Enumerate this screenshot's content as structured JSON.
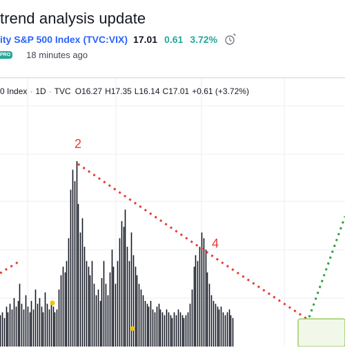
{
  "idea": {
    "title": "trend analysis update",
    "symbol_name": "ity S&P 500 Index",
    "symbol_ticker": "(TVC:VIX)",
    "price": "17.01",
    "change": "0.61",
    "change_pct": "3.72%",
    "badge": "PRO",
    "time_ago": "18 minutes ago"
  },
  "legend": {
    "name": "0 Index",
    "interval": "1D",
    "source": "TVC",
    "o_key": "O",
    "o": "16.27",
    "h_key": "H",
    "h": "17.35",
    "l_key": "L",
    "l": "16.14",
    "c_key": "C",
    "c": "17.01",
    "chg": "+0.61 (+3.72%)"
  },
  "annotations": {
    "wave2": "2",
    "wave4": "4"
  },
  "colors": {
    "accent": "#2962ff",
    "up": "#26a69a",
    "wave_line": "#e53935",
    "trend_line": "#2e9d3e",
    "marker": "#f2c300"
  },
  "chart_data": {
    "type": "line",
    "series": [
      {
        "values": [
          11,
          12,
          10,
          14,
          12,
          15,
          13,
          17,
          14,
          16,
          22,
          15,
          13,
          18,
          14,
          12,
          16,
          13,
          20,
          15,
          17,
          14,
          12,
          19,
          15,
          13,
          16,
          14,
          12,
          13,
          20,
          25,
          28,
          26,
          30,
          38,
          55,
          62,
          58,
          65,
          50,
          40,
          45,
          35,
          30,
          28,
          25,
          30,
          22,
          18,
          20,
          16,
          24,
          30,
          22,
          18,
          26,
          34,
          28,
          22,
          30,
          38,
          44,
          42,
          48,
          35,
          30,
          40,
          32,
          28,
          25,
          22,
          20,
          18,
          16,
          15,
          14,
          16,
          13,
          12,
          14,
          15,
          13,
          12,
          11,
          13,
          12,
          11,
          10,
          12,
          11,
          13,
          12,
          11,
          10,
          11,
          12,
          15,
          20,
          28,
          32,
          30,
          35,
          40,
          38,
          34,
          26,
          22,
          18,
          16,
          15,
          14,
          13,
          14,
          12,
          11,
          12,
          13,
          11,
          10
        ]
      }
    ]
  }
}
